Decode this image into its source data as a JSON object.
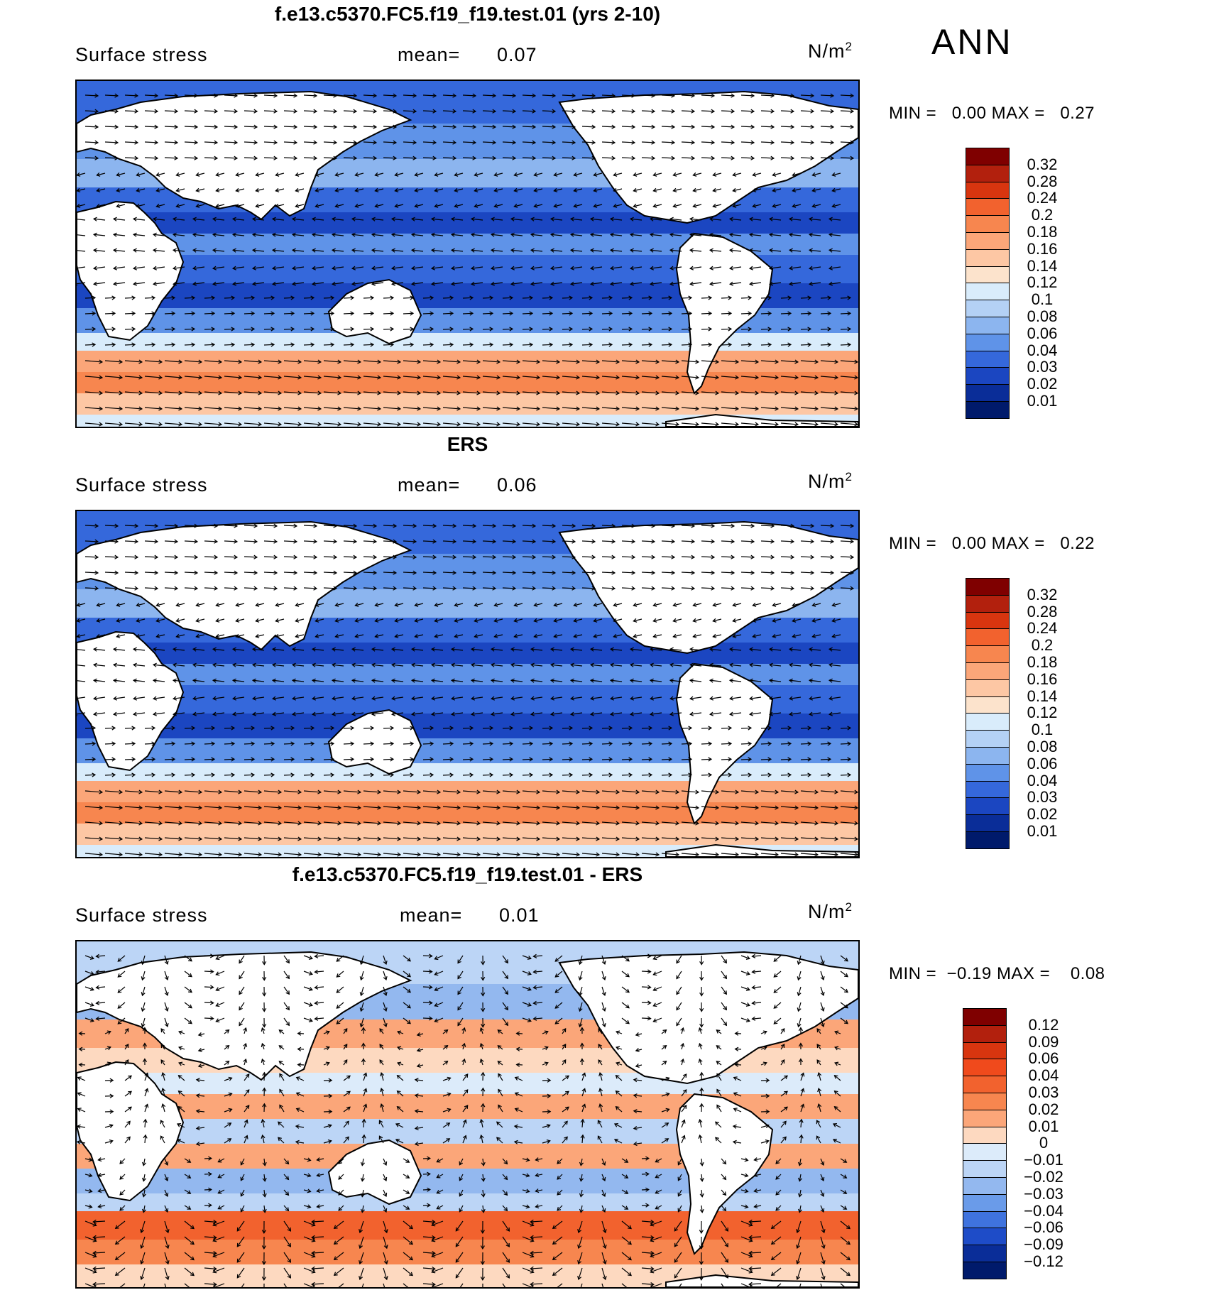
{
  "season": "ANN",
  "panels": [
    {
      "title": "f.e13.c5370.FC5.f19_f19.test.01 (yrs 2-10)",
      "variable": "Surface stress",
      "mean_label": "mean=",
      "mean_value": "0.07",
      "units": "N/m",
      "units_exp": "2",
      "min_label": "MIN =",
      "min_value": "0.00",
      "max_label": "MAX =",
      "max_value": "0.27",
      "colorbar": [
        "0.32",
        "0.28",
        "0.24",
        "0.2",
        "0.18",
        "0.16",
        "0.14",
        "0.12",
        "0.1",
        "0.08",
        "0.06",
        "0.04",
        "0.03",
        "0.02",
        "0.01"
      ],
      "colors": [
        "#7f0000",
        "#b2200d",
        "#d8350f",
        "#f2622e",
        "#f7864f",
        "#fba679",
        "#fdc7a4",
        "#fce3cc",
        "#d9ecfb",
        "#b4d1f5",
        "#8cb5ef",
        "#5f93e8",
        "#3568db",
        "#1b46c1",
        "#0a2d98",
        "#001a6b"
      ]
    },
    {
      "title": "ERS",
      "variable": "Surface stress",
      "mean_label": "mean=",
      "mean_value": "0.06",
      "units": "N/m",
      "units_exp": "2",
      "min_label": "MIN =",
      "min_value": "0.00",
      "max_label": "MAX =",
      "max_value": "0.22",
      "colorbar": [
        "0.32",
        "0.28",
        "0.24",
        "0.2",
        "0.18",
        "0.16",
        "0.14",
        "0.12",
        "0.1",
        "0.08",
        "0.06",
        "0.04",
        "0.03",
        "0.02",
        "0.01"
      ],
      "colors": [
        "#7f0000",
        "#b2200d",
        "#d8350f",
        "#f2622e",
        "#f7864f",
        "#fba679",
        "#fdc7a4",
        "#fce3cc",
        "#d9ecfb",
        "#b4d1f5",
        "#8cb5ef",
        "#5f93e8",
        "#3568db",
        "#1b46c1",
        "#0a2d98",
        "#001a6b"
      ]
    },
    {
      "title": "f.e13.c5370.FC5.f19_f19.test.01 - ERS",
      "variable": "Surface stress",
      "mean_label": "mean=",
      "mean_value": "0.01",
      "units": "N/m",
      "units_exp": "2",
      "min_label": "MIN =",
      "min_value": "−0.19",
      "max_label": "MAX =",
      "max_value": "0.08",
      "colorbar": [
        "0.12",
        "0.09",
        "0.06",
        "0.04",
        "0.03",
        "0.02",
        "0.01",
        "0",
        "−0.01",
        "−0.02",
        "−0.03",
        "−0.04",
        "−0.06",
        "−0.09",
        "−0.12"
      ],
      "colors": [
        "#7f0000",
        "#b2200d",
        "#d8350f",
        "#f04a1c",
        "#f2622e",
        "#f7864f",
        "#fba679",
        "#fdd9c0",
        "#dcebfa",
        "#bcd5f6",
        "#93b8ef",
        "#6a9be9",
        "#3f73de",
        "#1e4cc8",
        "#0a2d98",
        "#001a6b"
      ]
    }
  ]
}
